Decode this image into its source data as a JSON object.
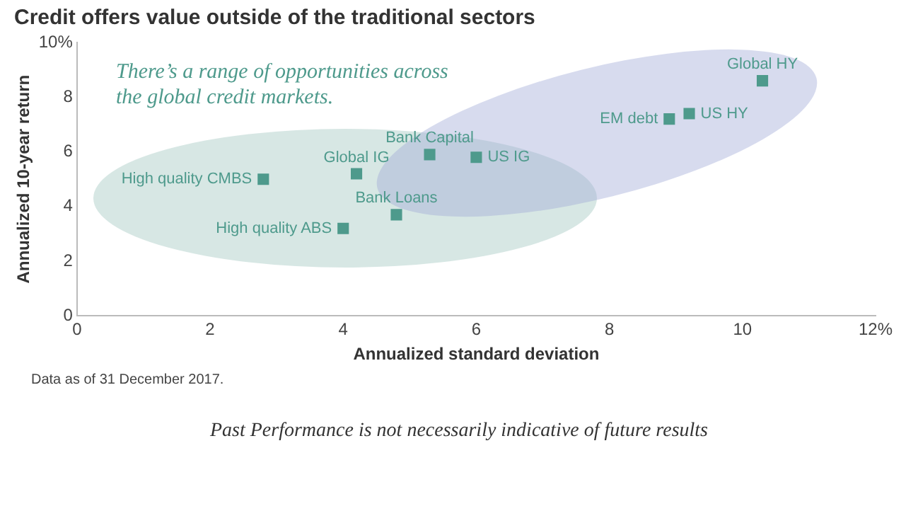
{
  "chart_data": {
    "type": "scatter",
    "title": "Credit offers value outside of the traditional sectors",
    "xlabel": "Annualized standard deviation",
    "ylabel": "Annualized 10-year return",
    "xlim": [
      0,
      12
    ],
    "xticks": [
      0,
      2,
      4,
      6,
      8,
      10,
      {
        "value": 12,
        "label": "12%"
      }
    ],
    "ylim": [
      0,
      10
    ],
    "yticks": [
      0,
      2,
      4,
      6,
      8,
      {
        "value": 10,
        "label": "10%"
      }
    ],
    "grid": false,
    "legend": false,
    "marker": "square",
    "series": [
      {
        "name": "High quality CMBS",
        "color": "#4e9a8c",
        "x": [
          2.8
        ],
        "values": [
          5.0
        ]
      },
      {
        "name": "Global IG",
        "color": "#4e9a8c",
        "x": [
          4.2
        ],
        "values": [
          5.2
        ]
      },
      {
        "name": "Bank Capital",
        "color": "#4e9a8c",
        "x": [
          5.3
        ],
        "values": [
          5.9
        ]
      },
      {
        "name": "Bank Loans",
        "color": "#4e9a8c",
        "x": [
          4.8
        ],
        "values": [
          3.7
        ]
      },
      {
        "name": "High quality ABS",
        "color": "#4e9a8c",
        "x": [
          4.0
        ],
        "values": [
          3.2
        ]
      },
      {
        "name": "US IG",
        "color": "#4e9a8c",
        "x": [
          6.0
        ],
        "values": [
          5.8
        ]
      },
      {
        "name": "EM debt",
        "color": "#4e9a8c",
        "x": [
          8.9
        ],
        "values": [
          7.2
        ]
      },
      {
        "name": "US HY",
        "color": "#4e9a8c",
        "x": [
          9.2
        ],
        "values": [
          7.4
        ]
      },
      {
        "name": "Global HY",
        "color": "#4e9a8c",
        "x": [
          10.3
        ],
        "values": [
          8.6
        ]
      }
    ],
    "annotations": [
      "There’s a range of opportunities across the global credit markets.",
      "Data as of 31 December 2017.",
      "Past Performance is not necessarily indicative of future results"
    ]
  }
}
